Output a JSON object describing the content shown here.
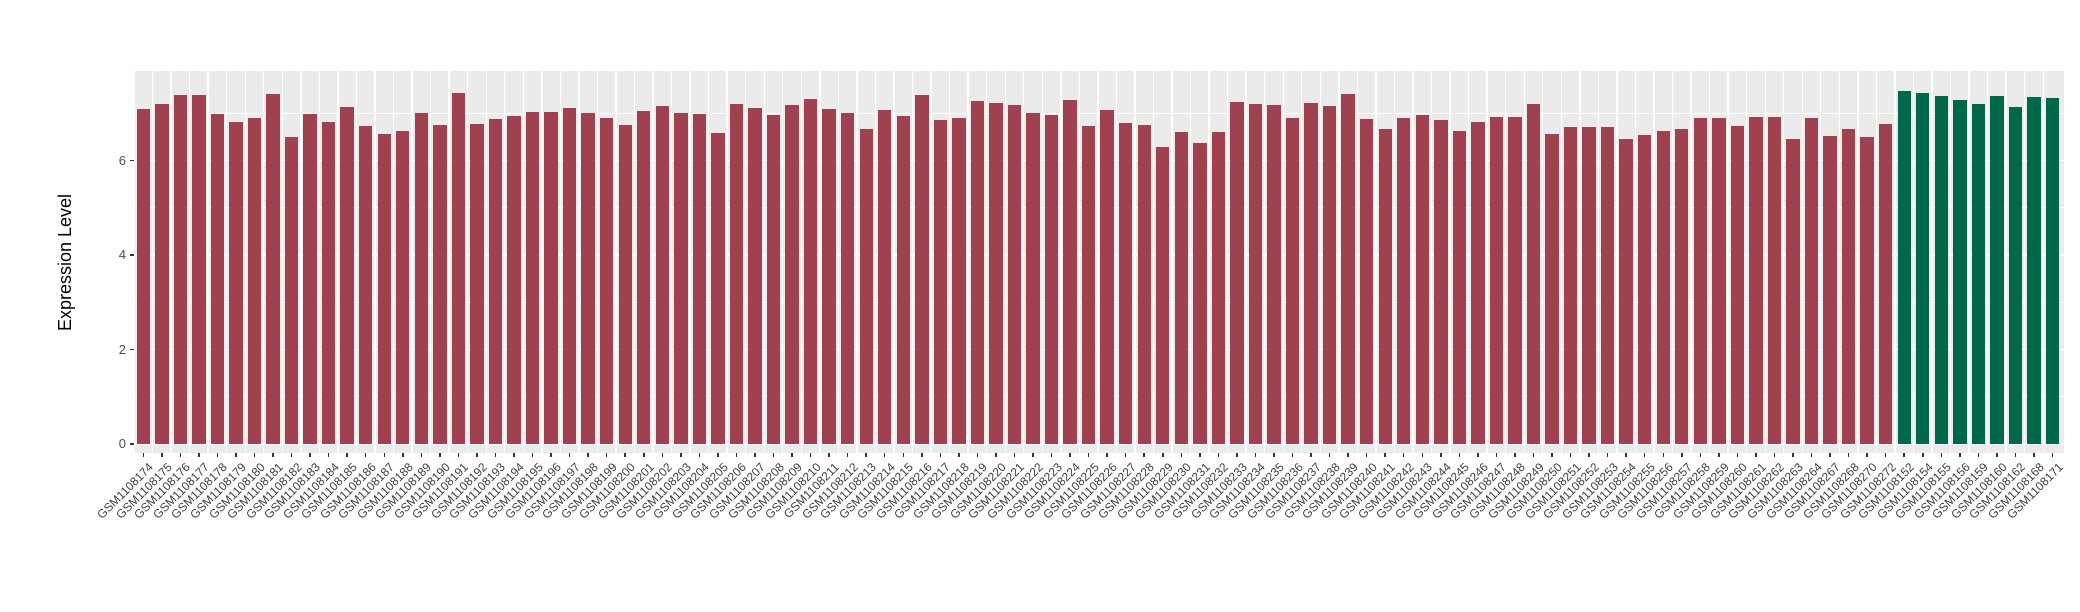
{
  "chart_data": {
    "type": "bar",
    "title": "",
    "xlabel": "",
    "ylabel": "Expression Level",
    "ylim": [
      0,
      7.9
    ],
    "yticks_major": [
      0,
      2,
      4,
      6
    ],
    "yticks_minor": [
      1,
      3,
      5,
      7
    ],
    "grid": "white gridlines on gray panel",
    "legend": "none",
    "panel_background": "#EBEBEB",
    "gridline_color": "#FFFFFF",
    "axis_text_color": "#4D4D4D",
    "series": [
      {
        "name": "group-1-red",
        "color": "#A0414F",
        "categories": [
          "GSM1108174",
          "GSM1108175",
          "GSM1108176",
          "GSM1108177",
          "GSM1108178",
          "GSM1108179",
          "GSM1108180",
          "GSM1108181",
          "GSM1108182",
          "GSM1108183",
          "GSM1108184",
          "GSM1108185",
          "GSM1108186",
          "GSM1108187",
          "GSM1108188",
          "GSM1108189",
          "GSM1108190",
          "GSM1108191",
          "GSM1108192",
          "GSM1108193",
          "GSM1108194",
          "GSM1108195",
          "GSM1108196",
          "GSM1108197",
          "GSM1108198",
          "GSM1108199",
          "GSM1108200",
          "GSM1108201",
          "GSM1108202",
          "GSM1108203",
          "GSM1108204",
          "GSM1108205",
          "GSM1108206",
          "GSM1108207",
          "GSM1108208",
          "GSM1108209",
          "GSM1108210",
          "GSM1108211",
          "GSM1108212",
          "GSM1108213",
          "GSM1108214",
          "GSM1108215",
          "GSM1108216",
          "GSM1108217",
          "GSM1108218",
          "GSM1108219",
          "GSM1108220",
          "GSM1108221",
          "GSM1108222",
          "GSM1108223",
          "GSM1108224",
          "GSM1108225",
          "GSM1108226",
          "GSM1108227",
          "GSM1108228",
          "GSM1108229",
          "GSM1108230",
          "GSM1108231",
          "GSM1108232",
          "GSM1108233",
          "GSM1108234",
          "GSM1108235",
          "GSM1108236",
          "GSM1108237",
          "GSM1108238",
          "GSM1108239",
          "GSM1108240",
          "GSM1108241",
          "GSM1108242",
          "GSM1108243",
          "GSM1108244",
          "GSM1108245",
          "GSM1108246",
          "GSM1108247",
          "GSM1108248",
          "GSM1108249",
          "GSM1108250",
          "GSM1108251",
          "GSM1108252",
          "GSM1108253",
          "GSM1108254",
          "GSM1108255",
          "GSM1108256",
          "GSM1108257",
          "GSM1108258",
          "GSM1108259",
          "GSM1108260",
          "GSM1108261",
          "GSM1108262",
          "GSM1108263",
          "GSM1108264",
          "GSM1108267",
          "GSM1108268",
          "GSM1108270",
          "GSM1108272"
        ],
        "values": [
          7.1,
          7.2,
          7.39,
          7.39,
          6.98,
          6.82,
          6.91,
          7.41,
          6.5,
          6.98,
          6.81,
          7.14,
          6.72,
          6.57,
          6.62,
          7.01,
          6.76,
          7.43,
          6.78,
          6.87,
          6.94,
          7.03,
          7.02,
          7.12,
          7.0,
          6.9,
          6.75,
          7.05,
          7.15,
          7.01,
          6.98,
          6.59,
          7.2,
          7.12,
          6.96,
          7.17,
          7.31,
          7.08,
          7.0,
          6.66,
          7.06,
          6.94,
          7.39,
          6.85,
          6.9,
          7.26,
          7.22,
          7.17,
          7.0,
          6.96,
          7.29,
          6.73,
          7.06,
          6.79,
          6.75,
          6.28,
          6.6,
          6.36,
          6.6,
          7.24,
          7.19,
          7.17,
          6.9,
          7.21,
          7.15,
          7.4,
          6.88,
          6.67,
          6.91,
          6.96,
          6.86,
          6.62,
          6.82,
          6.93,
          6.92,
          7.2,
          6.57,
          6.71,
          6.7,
          6.71,
          6.45,
          6.55,
          6.62,
          6.67,
          6.91,
          6.91,
          6.73,
          6.92,
          6.92,
          6.45,
          6.91,
          6.52,
          6.66,
          6.5,
          6.78
        ]
      },
      {
        "name": "group-2-green",
        "color": "#00684A",
        "categories": [
          "GSM1108152",
          "GSM1108154",
          "GSM1108155",
          "GSM1108156",
          "GSM1108159",
          "GSM1108160",
          "GSM1108162",
          "GSM1108168",
          "GSM1108171"
        ],
        "values": [
          7.48,
          7.43,
          7.36,
          7.29,
          7.2,
          7.36,
          7.13,
          7.35,
          7.32
        ]
      }
    ]
  }
}
